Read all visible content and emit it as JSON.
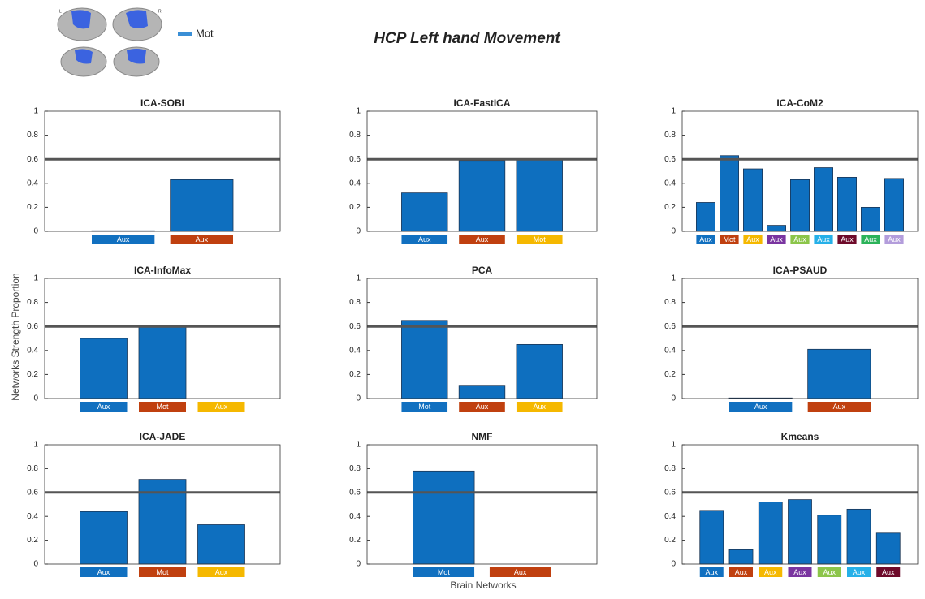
{
  "title": "HCP Left hand Movement",
  "legend": {
    "label": "Mot",
    "color": "#3a8fd6"
  },
  "brain_labels": [
    "L",
    "R"
  ],
  "y_label": "Networks Strength Proportion",
  "x_label": "Brain Networks",
  "chart_data": [
    {
      "type": "bar",
      "title": "ICA-SOBI",
      "categories": [
        "Aux",
        "Aux"
      ],
      "category_colors": [
        "#1170c0",
        "#c0400f"
      ],
      "values": [
        0.005,
        0.43
      ],
      "color": "#0e6fbf",
      "ylim": [
        0,
        1
      ],
      "yticks": [
        0,
        0.2,
        0.4,
        0.6,
        0.8,
        1
      ],
      "reference_line": 0.6
    },
    {
      "type": "bar",
      "title": "ICA-FastICA",
      "categories": [
        "Aux",
        "Aux",
        "Mot"
      ],
      "category_colors": [
        "#1170c0",
        "#c0400f",
        "#f5b800"
      ],
      "values": [
        0.32,
        0.59,
        0.6
      ],
      "color": "#0e6fbf",
      "ylim": [
        0,
        1
      ],
      "yticks": [
        0,
        0.2,
        0.4,
        0.6,
        0.8,
        1
      ],
      "reference_line": 0.6
    },
    {
      "type": "bar",
      "title": "ICA-CoM2",
      "categories": [
        "Aux",
        "Mot",
        "Aux",
        "Aux",
        "Aux",
        "Aux",
        "Aux",
        "Aux",
        "Aux"
      ],
      "category_colors": [
        "#1170c0",
        "#c0400f",
        "#f5b800",
        "#7a35a0",
        "#8cc54a",
        "#26b0e8",
        "#6e0a2a",
        "#2cb35a",
        "#b39ddb"
      ],
      "values": [
        0.24,
        0.63,
        0.52,
        0.05,
        0.43,
        0.53,
        0.45,
        0.2,
        0.44
      ],
      "color": "#0e6fbf",
      "ylim": [
        0,
        1
      ],
      "yticks": [
        0,
        0.2,
        0.4,
        0.6,
        0.8,
        1
      ],
      "reference_line": 0.6
    },
    {
      "type": "bar",
      "title": "ICA-InfoMax",
      "categories": [
        "Aux",
        "Mot",
        "Aux"
      ],
      "category_colors": [
        "#1170c0",
        "#c0400f",
        "#f5b800"
      ],
      "values": [
        0.5,
        0.61,
        0
      ],
      "color": "#0e6fbf",
      "ylim": [
        0,
        1
      ],
      "yticks": [
        0,
        0.2,
        0.4,
        0.6,
        0.8,
        1
      ],
      "reference_line": 0.6
    },
    {
      "type": "bar",
      "title": "PCA",
      "categories": [
        "Mot",
        "Aux",
        "Aux"
      ],
      "category_colors": [
        "#1170c0",
        "#c0400f",
        "#f5b800"
      ],
      "values": [
        0.65,
        0.11,
        0.45
      ],
      "color": "#0e6fbf",
      "ylim": [
        0,
        1
      ],
      "yticks": [
        0,
        0.2,
        0.4,
        0.6,
        0.8,
        1
      ],
      "reference_line": 0.6
    },
    {
      "type": "bar",
      "title": "ICA-PSAUD",
      "categories": [
        "Aux",
        "Aux"
      ],
      "category_colors": [
        "#1170c0",
        "#c0400f"
      ],
      "values": [
        0.005,
        0.41
      ],
      "color": "#0e6fbf",
      "ylim": [
        0,
        1
      ],
      "yticks": [
        0,
        0.2,
        0.4,
        0.6,
        0.8,
        1
      ],
      "reference_line": 0.6
    },
    {
      "type": "bar",
      "title": "ICA-JADE",
      "categories": [
        "Aux",
        "Mot",
        "Aux"
      ],
      "category_colors": [
        "#1170c0",
        "#c0400f",
        "#f5b800"
      ],
      "values": [
        0.44,
        0.71,
        0.33
      ],
      "color": "#0e6fbf",
      "ylim": [
        0,
        1
      ],
      "yticks": [
        0,
        0.2,
        0.4,
        0.6,
        0.8,
        1
      ],
      "reference_line": 0.6
    },
    {
      "type": "bar",
      "title": "NMF",
      "categories": [
        "Mot",
        "Aux"
      ],
      "category_colors": [
        "#1170c0",
        "#c0400f"
      ],
      "values": [
        0.78,
        0
      ],
      "color": "#0e6fbf",
      "ylim": [
        0,
        1
      ],
      "yticks": [
        0,
        0.2,
        0.4,
        0.6,
        0.8,
        1
      ],
      "reference_line": 0.6
    },
    {
      "type": "bar",
      "title": "Kmeans",
      "categories": [
        "Aux",
        "Aux",
        "Aux",
        "Aux",
        "Aux",
        "Aux",
        "Aux"
      ],
      "category_colors": [
        "#1170c0",
        "#c0400f",
        "#f5b800",
        "#7a35a0",
        "#8cc54a",
        "#26b0e8",
        "#6e0a2a"
      ],
      "values": [
        0.45,
        0.12,
        0.52,
        0.54,
        0.41,
        0.46,
        0.26
      ],
      "color": "#0e6fbf",
      "ylim": [
        0,
        1
      ],
      "yticks": [
        0,
        0.2,
        0.4,
        0.6,
        0.8,
        1
      ],
      "reference_line": 0.6
    }
  ]
}
